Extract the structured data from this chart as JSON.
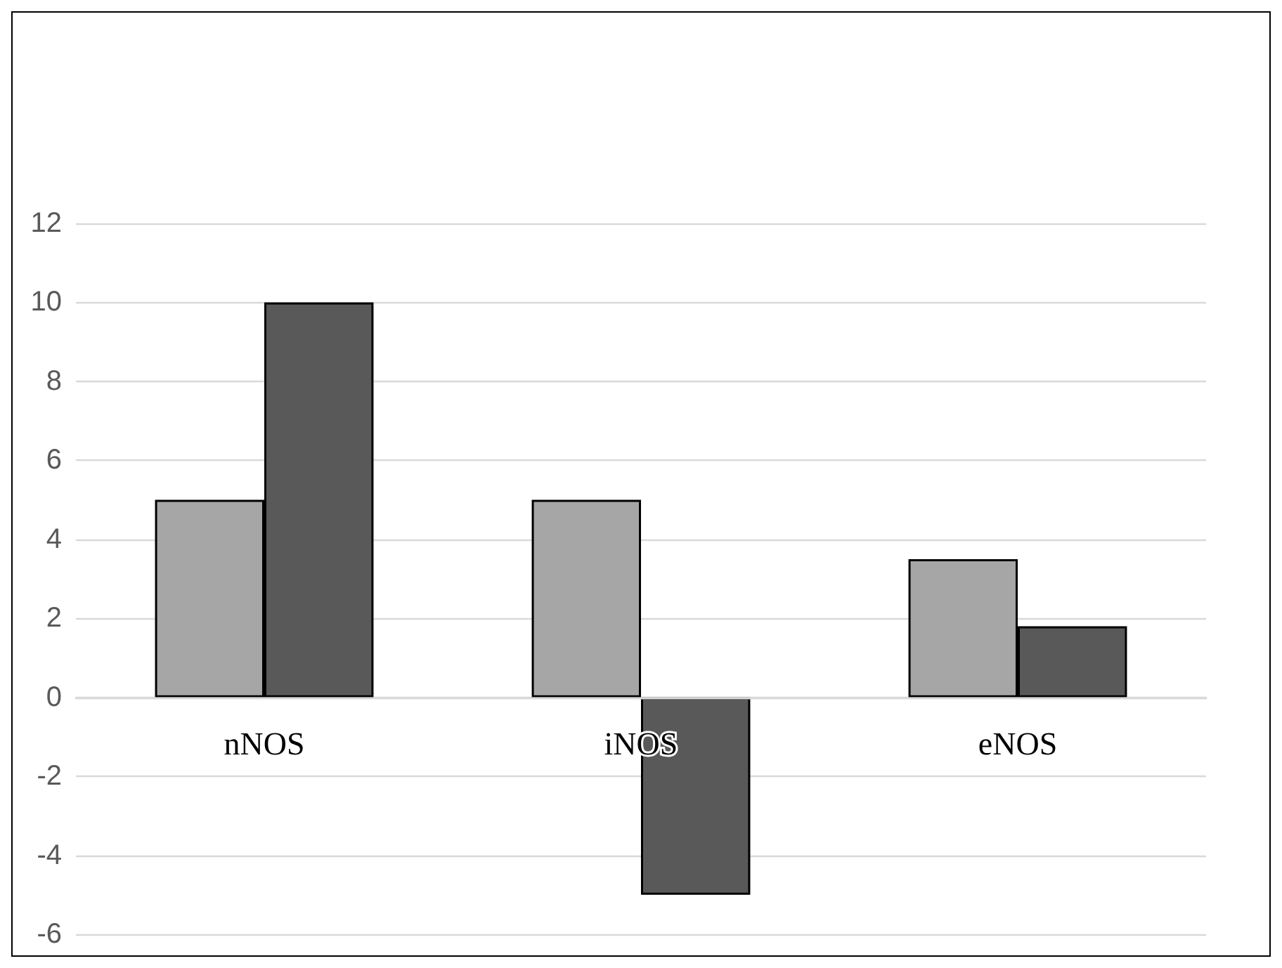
{
  "chart_data": {
    "type": "bar",
    "categories": [
      "nNOS",
      "iNOS",
      "eNOS"
    ],
    "series": [
      {
        "color": "#a6a6a6",
        "values": [
          5,
          5,
          3.5
        ]
      },
      {
        "color": "#595959",
        "values": [
          10,
          -5,
          1.8
        ]
      }
    ],
    "ylim": [
      -6,
      12
    ],
    "yticks": [
      -6,
      -4,
      -2,
      0,
      2,
      4,
      6,
      8,
      10,
      12
    ],
    "grid": "y"
  }
}
